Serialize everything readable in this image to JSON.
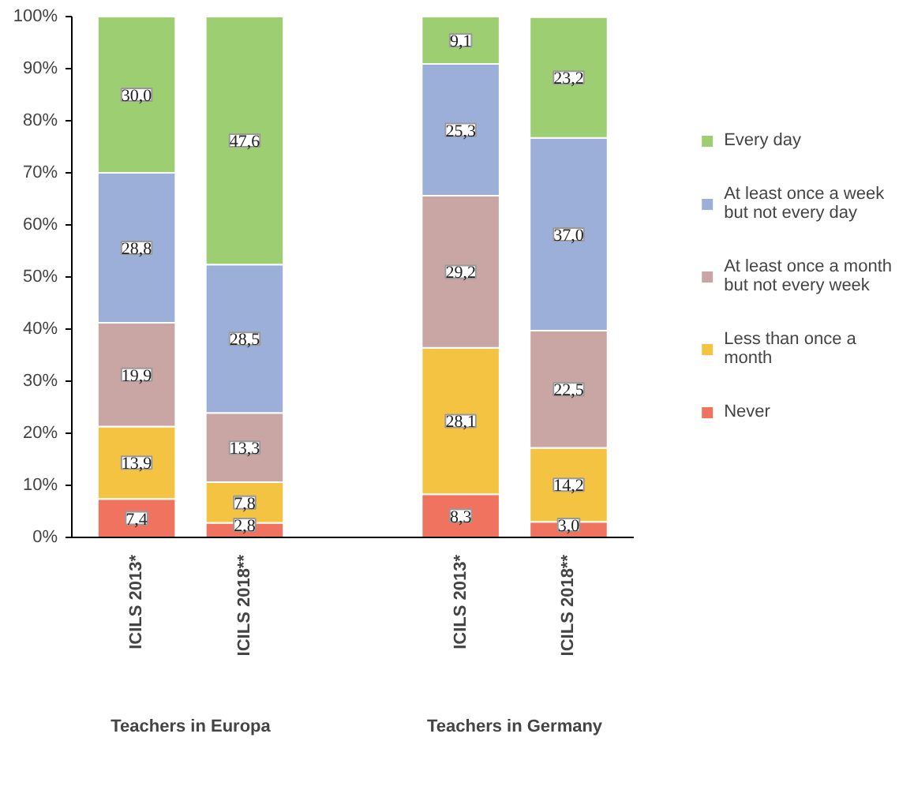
{
  "chart_data": {
    "type": "bar",
    "stacked": true,
    "categories": [
      "ICILS 2013*",
      "ICILS 2018**",
      null,
      "ICILS 2013*",
      "ICILS 2018**"
    ],
    "series": [
      {
        "name": "Never",
        "color": "#f0735f",
        "values": [
          7.4,
          2.8,
          null,
          8.3,
          3.0
        ],
        "value_labels": [
          "7,4",
          "2,8",
          null,
          "8,3",
          "3,0"
        ]
      },
      {
        "name": "Less than once a\nmonth",
        "color": "#f5c342",
        "values": [
          13.9,
          7.8,
          null,
          28.1,
          14.2
        ],
        "value_labels": [
          "13,9",
          "7,8",
          null,
          "28,1",
          "14,2"
        ]
      },
      {
        "name": "At least once a month\nbut not every week",
        "color": "#c9a5a4",
        "values": [
          19.9,
          13.3,
          null,
          29.2,
          22.5
        ],
        "value_labels": [
          "19,9",
          "13,3",
          null,
          "29,2",
          "22,5"
        ]
      },
      {
        "name": "At least once a week\nbut not every day",
        "color": "#9cafd8",
        "values": [
          28.8,
          28.5,
          null,
          25.3,
          37.0
        ],
        "value_labels": [
          "28,8",
          "28,5",
          null,
          "25,3",
          "37,0"
        ]
      },
      {
        "name": "Every day",
        "color": "#9dcf72",
        "values": [
          30.0,
          47.6,
          null,
          9.1,
          23.2
        ],
        "value_labels": [
          "30,0",
          "47,6",
          null,
          "9,1",
          "23,2"
        ]
      }
    ],
    "ylim": [
      0,
      100
    ],
    "yticks": [
      {
        "value": 0,
        "label": "0%"
      },
      {
        "value": 10,
        "label": "10%"
      },
      {
        "value": 20,
        "label": "20%"
      },
      {
        "value": 30,
        "label": "30%"
      },
      {
        "value": 40,
        "label": "40%"
      },
      {
        "value": 50,
        "label": "50%"
      },
      {
        "value": 60,
        "label": "60%"
      },
      {
        "value": 70,
        "label": "70%"
      },
      {
        "value": 80,
        "label": "80%"
      },
      {
        "value": 90,
        "label": "90%"
      },
      {
        "value": 100,
        "label": "100%"
      }
    ],
    "annotations": [
      "Teachers in Europa",
      "Teachers in Germany"
    ],
    "grid": false,
    "legend": "right"
  }
}
